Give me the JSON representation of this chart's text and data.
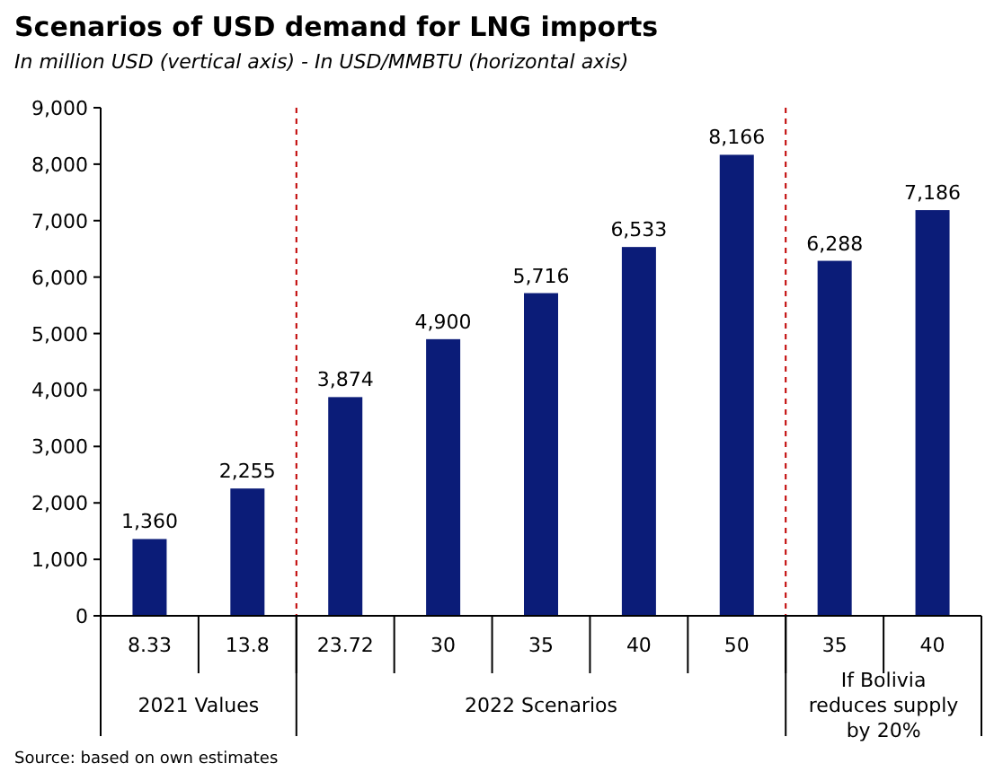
{
  "chart_data": {
    "type": "bar",
    "title": "Scenarios of USD demand for LNG imports",
    "subtitle": "In million USD (vertical axis) - In USD/MMBTU (horizontal axis)",
    "categories": [
      "8.33",
      "13.8",
      "23.72",
      "30",
      "35",
      "40",
      "50",
      "35",
      "40"
    ],
    "values": [
      1360,
      2255,
      3874,
      4900,
      5716,
      6533,
      8166,
      6288,
      7186
    ],
    "color": "#0b1c78",
    "grid": false,
    "value_labels": [
      "1,360",
      "2,255",
      "3,874",
      "4,900",
      "5,716",
      "6,533",
      "8,166",
      "6,288",
      "7,186"
    ],
    "ylim": [
      0,
      9000
    ],
    "yticks": [
      {
        "value": 0,
        "label": "0"
      },
      {
        "value": 1000,
        "label": "1,000"
      },
      {
        "value": 2000,
        "label": "2,000"
      },
      {
        "value": 3000,
        "label": "3,000"
      },
      {
        "value": 4000,
        "label": "4,000"
      },
      {
        "value": 5000,
        "label": "5,000"
      },
      {
        "value": 6000,
        "label": "6,000"
      },
      {
        "value": 7000,
        "label": "7,000"
      },
      {
        "value": 8000,
        "label": "8,000"
      },
      {
        "value": 9000,
        "label": "9,000"
      }
    ],
    "annotations": [
      "2021 Values",
      "2022 Scenarios",
      "If Bolivia reduces supply by 20%",
      "Source: based on own estimates"
    ]
  }
}
